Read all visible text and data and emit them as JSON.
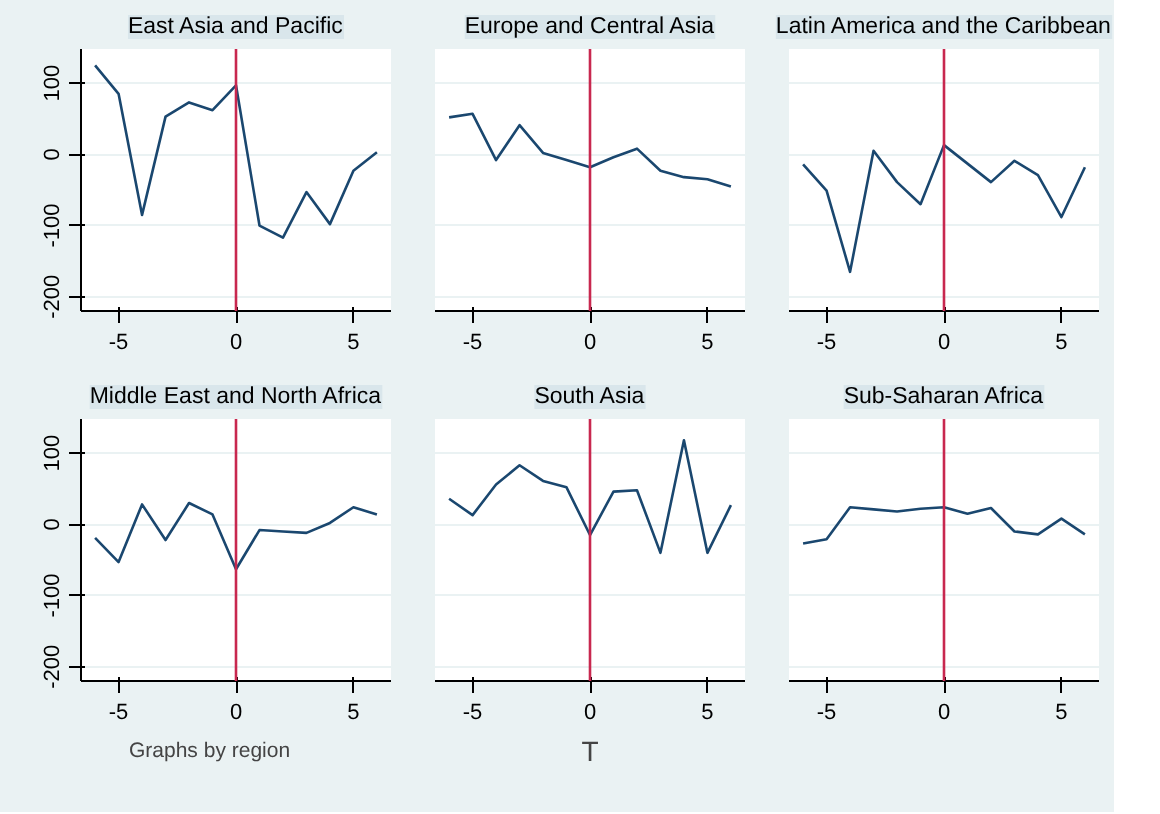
{
  "chart_data": [
    {
      "type": "line",
      "title": "East Asia and Pacific",
      "x": [
        -6,
        -5,
        -4,
        -3,
        -2,
        -1,
        0,
        1,
        2,
        3,
        4,
        5,
        6
      ],
      "series": [
        {
          "color": "#1a476f",
          "values": [
            125,
            85,
            -85,
            53,
            73,
            62,
            97,
            -100,
            -117,
            -53,
            -98,
            -23,
            3
          ]
        }
      ],
      "xlim": [
        -6.6,
        6.6
      ],
      "ylim": [
        -220,
        148
      ],
      "xticks": [
        -5,
        0,
        5
      ],
      "yticks": [
        -200,
        -100,
        0,
        100
      ],
      "grid": "y",
      "ref_lines": [
        {
          "axis": "x",
          "value": 0,
          "color": "#c8284f"
        }
      ]
    },
    {
      "type": "line",
      "title": "Europe and Central Asia",
      "x": [
        -6,
        -5,
        -4,
        -3,
        -2,
        -1,
        0,
        1,
        2,
        3,
        4,
        5,
        6
      ],
      "series": [
        {
          "color": "#1a476f",
          "values": [
            52,
            57,
            -8,
            41,
            2,
            -8,
            -18,
            -4,
            8,
            -23,
            -32,
            -35,
            -45
          ]
        }
      ],
      "xlim": [
        -6.6,
        6.6
      ],
      "ylim": [
        -220,
        148
      ],
      "xticks": [
        -5,
        0,
        5
      ],
      "yticks": [
        -200,
        -100,
        0,
        100
      ],
      "grid": "y",
      "tick_labels": "x",
      "ref_lines": [
        {
          "axis": "x",
          "value": 0,
          "color": "#c8284f"
        }
      ]
    },
    {
      "type": "line",
      "title": "Latin America and the Caribbean",
      "x": [
        -6,
        -5,
        -4,
        -3,
        -2,
        -1,
        0,
        1,
        2,
        3,
        4,
        5,
        6
      ],
      "series": [
        {
          "color": "#1a476f",
          "values": [
            -14,
            -51,
            -165,
            5,
            -39,
            -70,
            13,
            -13,
            -39,
            -9,
            -29,
            -88,
            -18
          ]
        }
      ],
      "xlim": [
        -6.6,
        6.6
      ],
      "ylim": [
        -220,
        148
      ],
      "xticks": [
        -5,
        0,
        5
      ],
      "yticks": [
        -200,
        -100,
        0,
        100
      ],
      "grid": "y",
      "tick_labels": "x",
      "ref_lines": [
        {
          "axis": "x",
          "value": 0,
          "color": "#c8284f"
        }
      ]
    },
    {
      "type": "line",
      "title": "Middle East and North Africa",
      "x": [
        -6,
        -5,
        -4,
        -3,
        -2,
        -1,
        0,
        1,
        2,
        3,
        4,
        5,
        6
      ],
      "series": [
        {
          "color": "#1a476f",
          "values": [
            -19,
            -53,
            28,
            -22,
            30,
            14,
            -63,
            -8,
            -10,
            -12,
            2,
            24,
            14
          ]
        }
      ],
      "xlim": [
        -6.6,
        6.6
      ],
      "ylim": [
        -220,
        148
      ],
      "xticks": [
        -5,
        0,
        5
      ],
      "yticks": [
        -200,
        -100,
        0,
        100
      ],
      "grid": "y",
      "ref_lines": [
        {
          "axis": "x",
          "value": 0,
          "color": "#c8284f"
        }
      ],
      "annotations": [
        "Graphs by region"
      ]
    },
    {
      "type": "line",
      "title": "South Asia",
      "xlabel": "T",
      "x": [
        -6,
        -5,
        -4,
        -3,
        -2,
        -1,
        0,
        1,
        2,
        3,
        4,
        5,
        6
      ],
      "series": [
        {
          "color": "#1a476f",
          "values": [
            36,
            13,
            56,
            83,
            61,
            52,
            -15,
            46,
            48,
            -40,
            118,
            -40,
            27
          ]
        }
      ],
      "xlim": [
        -6.6,
        6.6
      ],
      "ylim": [
        -220,
        148
      ],
      "xticks": [
        -5,
        0,
        5
      ],
      "yticks": [
        -200,
        -100,
        0,
        100
      ],
      "grid": "y",
      "tick_labels": "x",
      "ref_lines": [
        {
          "axis": "x",
          "value": 0,
          "color": "#c8284f"
        }
      ]
    },
    {
      "type": "line",
      "title": "Sub-Saharan Africa",
      "x": [
        -6,
        -5,
        -4,
        -3,
        -2,
        -1,
        0,
        1,
        2,
        3,
        4,
        5,
        6
      ],
      "series": [
        {
          "color": "#1a476f",
          "values": [
            -27,
            -21,
            24,
            21,
            18,
            22,
            24,
            15,
            23,
            -10,
            -14,
            8,
            -14
          ]
        }
      ],
      "xlim": [
        -6.6,
        6.6
      ],
      "ylim": [
        -220,
        148
      ],
      "xticks": [
        -5,
        0,
        5
      ],
      "yticks": [
        -200,
        -100,
        0,
        100
      ],
      "grid": "y",
      "tick_labels": "x",
      "ref_lines": [
        {
          "axis": "x",
          "value": 0,
          "color": "#c8284f"
        }
      ]
    }
  ]
}
